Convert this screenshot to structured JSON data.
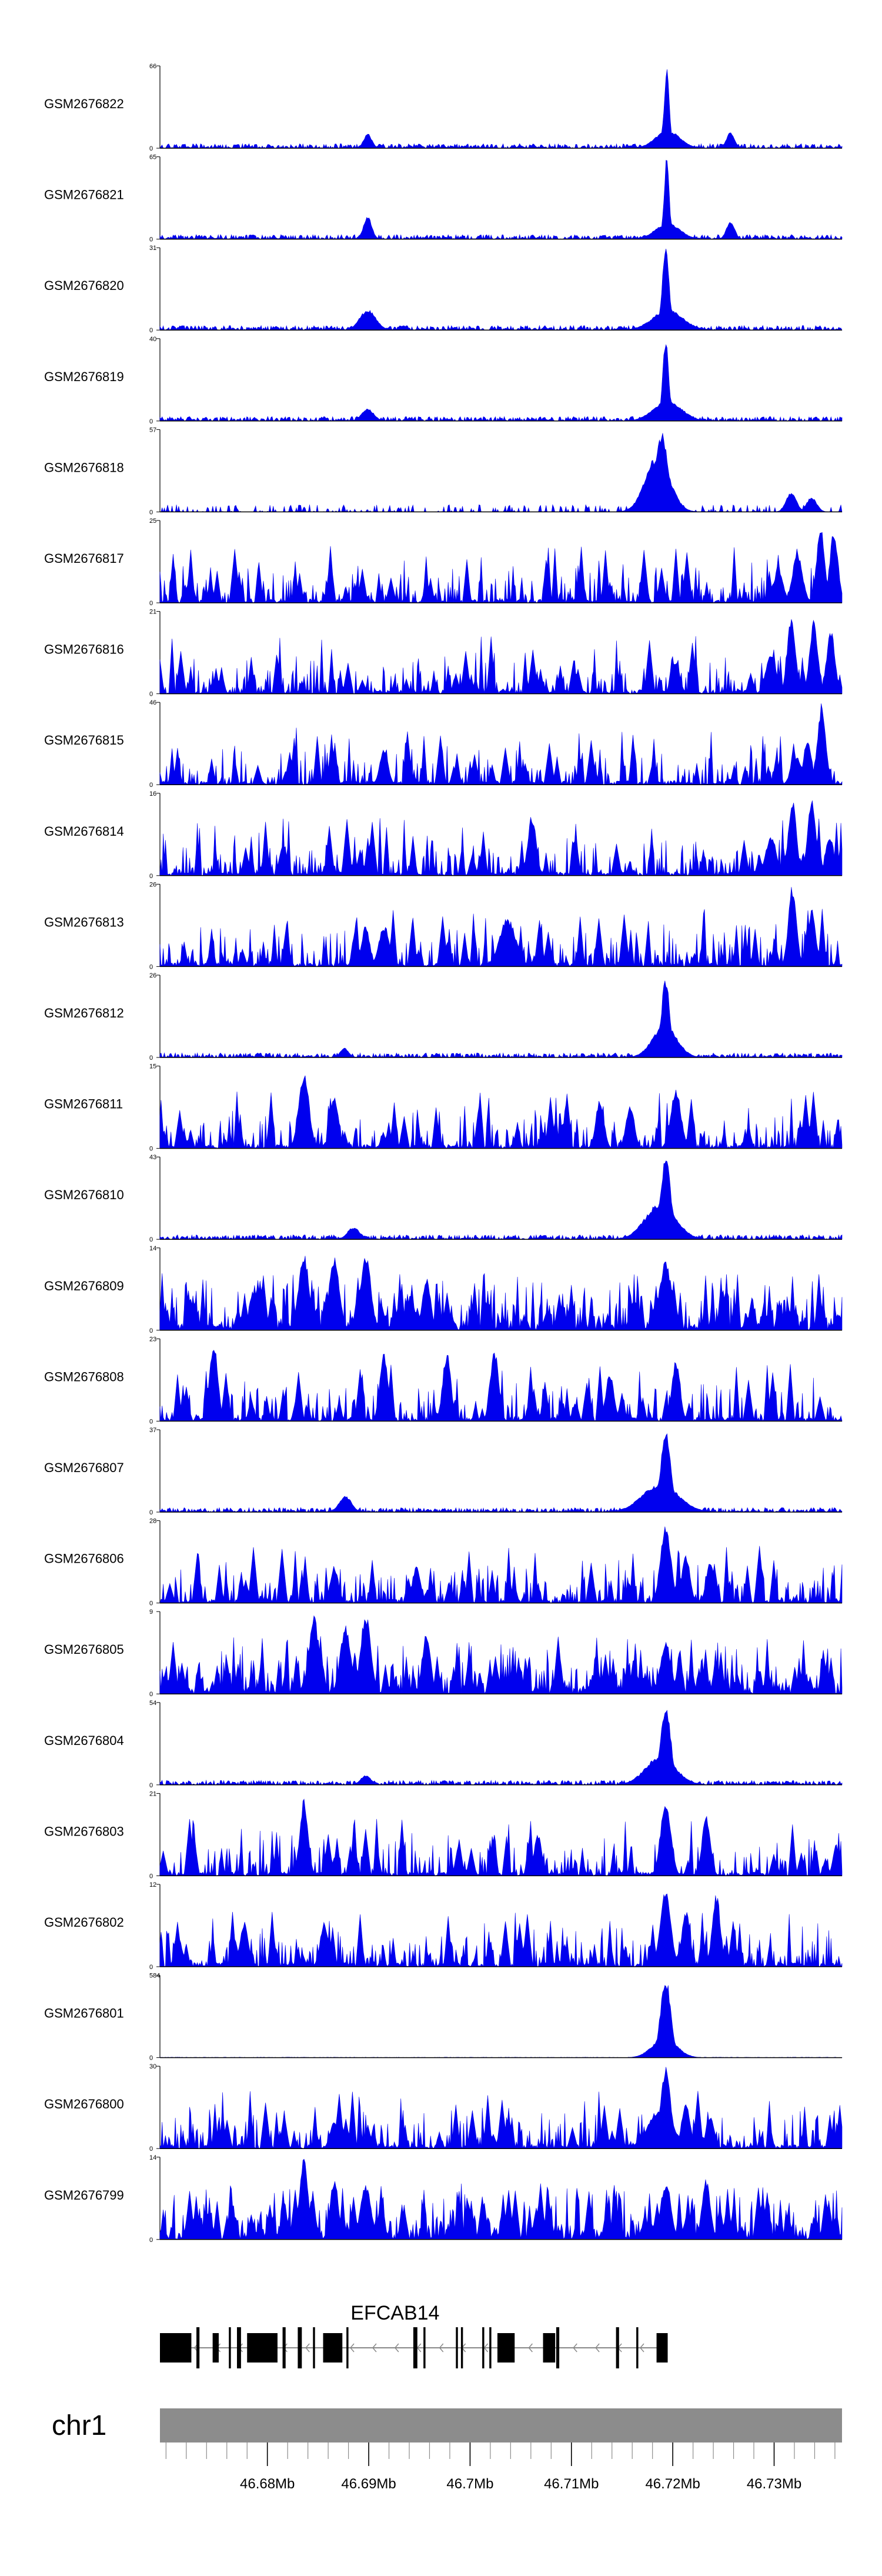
{
  "chart_data": {
    "type": "area",
    "title": "",
    "xlabel": "",
    "ylabel": "",
    "xlim_mb": [
      46.6694,
      46.7367
    ],
    "fill_color": "#0000ee",
    "baseline_color": "#000000",
    "tracks": [
      {
        "name": "GSM2676822",
        "ymax": 66,
        "ymin": 0,
        "pattern": "dense",
        "peaks": [
          [
            46.7194,
            1.0,
            0.00025
          ],
          [
            46.6899,
            0.18,
            0.0004
          ],
          [
            46.7257,
            0.2,
            0.0004
          ],
          [
            46.7195,
            0.22,
            0.0012
          ]
        ],
        "seed": 11
      },
      {
        "name": "GSM2676821",
        "ymax": 65,
        "ymin": 0,
        "pattern": "dense",
        "peaks": [
          [
            46.7194,
            1.0,
            0.00025
          ],
          [
            46.6899,
            0.28,
            0.0004
          ],
          [
            46.7257,
            0.22,
            0.0004
          ],
          [
            46.7195,
            0.2,
            0.0012
          ]
        ],
        "seed": 12
      },
      {
        "name": "GSM2676820",
        "ymax": 31,
        "ymin": 0,
        "pattern": "dense",
        "peaks": [
          [
            46.7193,
            1.0,
            0.00035
          ],
          [
            46.6899,
            0.25,
            0.0008
          ],
          [
            46.7195,
            0.25,
            0.0015
          ]
        ],
        "seed": 13
      },
      {
        "name": "GSM2676819",
        "ymax": 40,
        "ymin": 0,
        "pattern": "dense",
        "peaks": [
          [
            46.7193,
            1.0,
            0.0003
          ],
          [
            46.6899,
            0.15,
            0.0006
          ],
          [
            46.7195,
            0.25,
            0.0014
          ]
        ],
        "seed": 14
      },
      {
        "name": "GSM2676818",
        "ymax": 57,
        "ymin": 0,
        "pattern": "sparse",
        "peaks": [
          [
            46.7189,
            1.0,
            0.0006
          ],
          [
            46.7185,
            0.7,
            0.0012
          ],
          [
            46.7317,
            0.25,
            0.0005
          ],
          [
            46.7337,
            0.18,
            0.0005
          ]
        ],
        "seed": 15
      },
      {
        "name": "GSM2676817",
        "ymax": 25,
        "ymin": 0,
        "pattern": "spiky",
        "peaks": [
          [
            46.7346,
            0.95,
            0.0004
          ],
          [
            46.7359,
            0.9,
            0.0004
          ],
          [
            46.7323,
            0.6,
            0.0005
          ],
          [
            46.7304,
            0.4,
            0.0005
          ]
        ],
        "seed": 16
      },
      {
        "name": "GSM2676816",
        "ymax": 21,
        "ymin": 0,
        "pattern": "spiky",
        "peaks": [
          [
            46.7317,
            0.95,
            0.0004
          ],
          [
            46.7339,
            0.9,
            0.0004
          ],
          [
            46.7356,
            0.8,
            0.0004
          ],
          [
            46.7203,
            0.4,
            0.0004
          ],
          [
            46.7297,
            0.5,
            0.0005
          ]
        ],
        "seed": 17
      },
      {
        "name": "GSM2676815",
        "ymax": 46,
        "ymin": 0,
        "pattern": "spiky",
        "peaks": [
          [
            46.7347,
            1.0,
            0.0004
          ],
          [
            46.7333,
            0.55,
            0.0004
          ],
          [
            46.6915,
            0.45,
            0.0004
          ],
          [
            46.7322,
            0.35,
            0.0005
          ]
        ],
        "seed": 18
      },
      {
        "name": "GSM2676814",
        "ymax": 16,
        "ymin": 0,
        "pattern": "spiky",
        "peaks": [
          [
            46.7318,
            0.95,
            0.0004
          ],
          [
            46.7337,
            0.95,
            0.0004
          ],
          [
            46.7061,
            0.75,
            0.0004
          ],
          [
            46.7297,
            0.5,
            0.0005
          ],
          [
            46.7355,
            0.5,
            0.0004
          ]
        ],
        "seed": 19
      },
      {
        "name": "GSM2676813",
        "ymax": 26,
        "ymin": 0,
        "pattern": "spiky",
        "peaks": [
          [
            46.7318,
            1.0,
            0.0004
          ],
          [
            46.7337,
            0.7,
            0.0004
          ],
          [
            46.7037,
            0.6,
            0.0008
          ],
          [
            46.6897,
            0.5,
            0.0004
          ],
          [
            46.6915,
            0.5,
            0.0005
          ]
        ],
        "seed": 20
      },
      {
        "name": "GSM2676812",
        "ymax": 26,
        "ymin": 0,
        "pattern": "dense",
        "peaks": [
          [
            46.7193,
            1.0,
            0.0004
          ],
          [
            46.7192,
            0.4,
            0.0012
          ],
          [
            46.6876,
            0.12,
            0.0004
          ]
        ],
        "seed": 21
      },
      {
        "name": "GSM2676811",
        "ymax": 15,
        "ymin": 0,
        "pattern": "spiky",
        "peaks": [
          [
            46.6836,
            0.95,
            0.0005
          ],
          [
            46.6866,
            0.65,
            0.0004
          ],
          [
            46.7203,
            0.75,
            0.0005
          ],
          [
            46.7128,
            0.6,
            0.0004
          ],
          [
            46.7158,
            0.55,
            0.0004
          ]
        ],
        "seed": 22
      },
      {
        "name": "GSM2676810",
        "ymax": 43,
        "ymin": 0,
        "pattern": "dense",
        "peaks": [
          [
            46.7193,
            1.0,
            0.0005
          ],
          [
            46.7188,
            0.45,
            0.0015
          ],
          [
            46.6885,
            0.15,
            0.0006
          ]
        ],
        "seed": 23
      },
      {
        "name": "GSM2676809",
        "ymax": 14,
        "ymin": 0,
        "pattern": "spiky-dense",
        "peaks": [
          [
            46.6836,
            0.95,
            0.0005
          ],
          [
            46.6866,
            0.9,
            0.0005
          ],
          [
            46.6897,
            0.95,
            0.0005
          ],
          [
            46.7193,
            0.85,
            0.0006
          ],
          [
            46.6957,
            0.65,
            0.0004
          ]
        ],
        "seed": 24
      },
      {
        "name": "GSM2676808",
        "ymax": 23,
        "ymin": 0,
        "pattern": "spiky",
        "peaks": [
          [
            46.6747,
            1.0,
            0.0004
          ],
          [
            46.6915,
            0.85,
            0.0004
          ],
          [
            46.6977,
            0.85,
            0.0004
          ],
          [
            46.7024,
            0.9,
            0.0004
          ],
          [
            46.7203,
            0.75,
            0.0004
          ],
          [
            46.7138,
            0.6,
            0.0004
          ]
        ],
        "seed": 25
      },
      {
        "name": "GSM2676807",
        "ymax": 37,
        "ymin": 0,
        "pattern": "dense",
        "peaks": [
          [
            46.7193,
            1.0,
            0.0005
          ],
          [
            46.7188,
            0.35,
            0.0018
          ],
          [
            46.6877,
            0.2,
            0.0006
          ]
        ],
        "seed": 26
      },
      {
        "name": "GSM2676806",
        "ymax": 28,
        "ymin": 0,
        "pattern": "spiky",
        "peaks": [
          [
            46.7193,
            1.0,
            0.0005
          ],
          [
            46.7213,
            0.6,
            0.0004
          ],
          [
            46.7237,
            0.5,
            0.0004
          ],
          [
            46.6866,
            0.45,
            0.0004
          ],
          [
            46.6947,
            0.45,
            0.0004
          ]
        ],
        "seed": 27
      },
      {
        "name": "GSM2676805",
        "ymax": 9,
        "ymin": 0,
        "pattern": "spiky-dense",
        "peaks": [
          [
            46.6846,
            0.95,
            0.0005
          ],
          [
            46.6897,
            1.0,
            0.0005
          ],
          [
            46.6877,
            0.85,
            0.0005
          ],
          [
            46.6957,
            0.75,
            0.0004
          ],
          [
            46.7193,
            0.65,
            0.0005
          ]
        ],
        "seed": 28
      },
      {
        "name": "GSM2676804",
        "ymax": 54,
        "ymin": 0,
        "pattern": "dense",
        "peaks": [
          [
            46.7193,
            1.0,
            0.0005
          ],
          [
            46.7188,
            0.35,
            0.0015
          ],
          [
            46.6897,
            0.12,
            0.0005
          ]
        ],
        "seed": 29
      },
      {
        "name": "GSM2676803",
        "ymax": 21,
        "ymin": 0,
        "pattern": "spiky",
        "peaks": [
          [
            46.6836,
            0.95,
            0.0004
          ],
          [
            46.7193,
            0.95,
            0.0005
          ],
          [
            46.7233,
            0.75,
            0.0004
          ],
          [
            46.7067,
            0.5,
            0.0004
          ],
          [
            46.7361,
            0.4,
            0.0003
          ]
        ],
        "seed": 30
      },
      {
        "name": "GSM2676802",
        "ymax": 12,
        "ymin": 0,
        "pattern": "spiky",
        "peaks": [
          [
            46.7193,
            1.0,
            0.0005
          ],
          [
            46.7243,
            0.9,
            0.0004
          ],
          [
            46.7213,
            0.7,
            0.0004
          ],
          [
            46.6777,
            0.55,
            0.0004
          ],
          [
            46.6856,
            0.55,
            0.0004
          ]
        ],
        "seed": 31
      },
      {
        "name": "GSM2676801",
        "ymax": 584,
        "ymin": 0,
        "pattern": "flat",
        "peaks": [
          [
            46.7193,
            1.0,
            0.0005
          ],
          [
            46.7192,
            0.25,
            0.0012
          ]
        ],
        "seed": 32
      },
      {
        "name": "GSM2676800",
        "ymax": 30,
        "ymin": 0,
        "pattern": "spiky",
        "peaks": [
          [
            46.7193,
            1.0,
            0.0005
          ],
          [
            46.7213,
            0.6,
            0.0004
          ],
          [
            46.7188,
            0.5,
            0.0012
          ],
          [
            46.7237,
            0.4,
            0.0004
          ],
          [
            46.6866,
            0.35,
            0.0004
          ]
        ],
        "seed": 33
      },
      {
        "name": "GSM2676799",
        "ymax": 14,
        "ymin": 0,
        "pattern": "spiky-dense",
        "peaks": [
          [
            46.6836,
            1.0,
            0.0004
          ],
          [
            46.6866,
            0.75,
            0.0004
          ],
          [
            46.6897,
            0.7,
            0.0005
          ],
          [
            46.7193,
            0.7,
            0.0005
          ],
          [
            46.7233,
            0.75,
            0.0004
          ]
        ],
        "seed": 34
      }
    ],
    "gene": {
      "label": "EFCAB14",
      "strand": "-",
      "start_mb": 46.6694,
      "end_mb": 46.7194,
      "exons_mb": [
        [
          46.6694,
          46.6725
        ],
        [
          46.673,
          46.6733
        ],
        [
          46.6746,
          46.6752
        ],
        [
          46.6762,
          46.6764
        ],
        [
          46.677,
          46.6774
        ],
        [
          46.678,
          46.681
        ],
        [
          46.6815,
          46.6818
        ],
        [
          46.683,
          46.6834
        ],
        [
          46.6845,
          46.6847
        ],
        [
          46.6855,
          46.6874
        ],
        [
          46.6878,
          46.688
        ],
        [
          46.6944,
          46.6948
        ],
        [
          46.6954,
          46.6956
        ],
        [
          46.6986,
          46.6988
        ],
        [
          46.6991,
          46.6993
        ],
        [
          46.7012,
          46.7014
        ],
        [
          46.7019,
          46.7021
        ],
        [
          46.7027,
          46.7044
        ],
        [
          46.7072,
          46.7084
        ],
        [
          46.7085,
          46.7088
        ],
        [
          46.7144,
          46.7147
        ],
        [
          46.7164,
          46.7166
        ],
        [
          46.7184,
          46.7195
        ]
      ]
    },
    "chromosome": {
      "label": "chr1",
      "color": "#8c8c8c"
    },
    "xaxis": {
      "major_ticks_mb": [
        46.68,
        46.69,
        46.7,
        46.71,
        46.72,
        46.73
      ],
      "tick_labels": [
        "46.68Mb",
        "46.69Mb",
        "46.7Mb",
        "46.71Mb",
        "46.72Mb",
        "46.73Mb"
      ],
      "minor_tick_step_mb": 0.002
    }
  }
}
